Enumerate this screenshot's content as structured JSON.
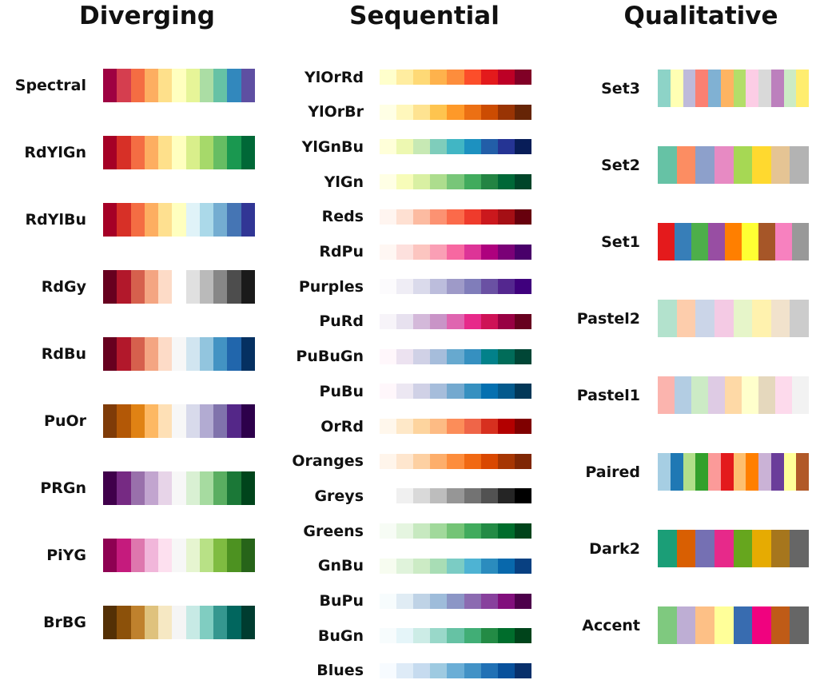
{
  "groups": [
    {
      "title": "Diverging",
      "palettes": [
        {
          "name": "Spectral",
          "colors": [
            "#9e0142",
            "#d53e4f",
            "#f46d43",
            "#fdae61",
            "#fee08b",
            "#ffffbf",
            "#e6f598",
            "#abdda4",
            "#66c2a5",
            "#3288bd",
            "#5e4fa2"
          ]
        },
        {
          "name": "RdYlGn",
          "colors": [
            "#a50026",
            "#d73027",
            "#f46d43",
            "#fdae61",
            "#fee08b",
            "#ffffbf",
            "#d9ef8b",
            "#a6d96a",
            "#66bd63",
            "#1a9850",
            "#006837"
          ]
        },
        {
          "name": "RdYlBu",
          "colors": [
            "#a50026",
            "#d73027",
            "#f46d43",
            "#fdae61",
            "#fee090",
            "#ffffbf",
            "#e0f3f8",
            "#abd9e9",
            "#74add1",
            "#4575b4",
            "#313695"
          ]
        },
        {
          "name": "RdGy",
          "colors": [
            "#67001f",
            "#b2182b",
            "#d6604d",
            "#f4a582",
            "#fddbc7",
            "#ffffff",
            "#e0e0e0",
            "#bababa",
            "#878787",
            "#4d4d4d",
            "#1a1a1a"
          ]
        },
        {
          "name": "RdBu",
          "colors": [
            "#67001f",
            "#b2182b",
            "#d6604d",
            "#f4a582",
            "#fddbc7",
            "#f7f7f7",
            "#d1e5f0",
            "#92c5de",
            "#4393c3",
            "#2166ac",
            "#053061"
          ]
        },
        {
          "name": "PuOr",
          "colors": [
            "#7f3b08",
            "#b35806",
            "#e08214",
            "#fdb863",
            "#fee0b6",
            "#f7f7f7",
            "#d8daeb",
            "#b2abd2",
            "#8073ac",
            "#542788",
            "#2d004b"
          ]
        },
        {
          "name": "PRGn",
          "colors": [
            "#40004b",
            "#762a83",
            "#9970ab",
            "#c2a5cf",
            "#e7d4e8",
            "#f7f7f7",
            "#d9f0d3",
            "#a6dba0",
            "#5aae61",
            "#1b7837",
            "#00441b"
          ]
        },
        {
          "name": "PiYG",
          "colors": [
            "#8e0152",
            "#c51b7d",
            "#de77ae",
            "#f1b6da",
            "#fde0ef",
            "#f7f7f7",
            "#e6f5d0",
            "#b8e186",
            "#7fbc41",
            "#4d9221",
            "#276419"
          ]
        },
        {
          "name": "BrBG",
          "colors": [
            "#543005",
            "#8c510a",
            "#bf812d",
            "#dfc27d",
            "#f6e8c3",
            "#f5f5f5",
            "#c7eae5",
            "#80cdc1",
            "#35978f",
            "#01665e",
            "#003c30"
          ]
        }
      ]
    },
    {
      "title": "Sequential",
      "palettes": [
        {
          "name": "YlOrRd",
          "colors": [
            "#ffffcc",
            "#ffeda0",
            "#fed976",
            "#feb24c",
            "#fd8d3c",
            "#fc4e2a",
            "#e31a1c",
            "#bd0026",
            "#800026"
          ]
        },
        {
          "name": "YlOrBr",
          "colors": [
            "#ffffe5",
            "#fff7bc",
            "#fee391",
            "#fec44f",
            "#fe9929",
            "#ec7014",
            "#cc4c02",
            "#993404",
            "#662506"
          ]
        },
        {
          "name": "YlGnBu",
          "colors": [
            "#ffffd9",
            "#edf8b1",
            "#c7e9b4",
            "#7fcdbb",
            "#41b6c4",
            "#1d91c0",
            "#225ea8",
            "#253494",
            "#081d58"
          ]
        },
        {
          "name": "YlGn",
          "colors": [
            "#ffffe5",
            "#f7fcb9",
            "#d9f0a3",
            "#addd8e",
            "#78c679",
            "#41ab5d",
            "#238443",
            "#006837",
            "#004529"
          ]
        },
        {
          "name": "Reds",
          "colors": [
            "#fff5f0",
            "#fee0d2",
            "#fcbba1",
            "#fc9272",
            "#fb6a4a",
            "#ef3b2c",
            "#cb181d",
            "#a50f15",
            "#67000d"
          ]
        },
        {
          "name": "RdPu",
          "colors": [
            "#fff7f3",
            "#fde0dd",
            "#fcc5c0",
            "#fa9fb5",
            "#f768a1",
            "#dd3497",
            "#ae017e",
            "#7a0177",
            "#49006a"
          ]
        },
        {
          "name": "Purples",
          "colors": [
            "#fcfbfd",
            "#efedf5",
            "#dadaeb",
            "#bcbddc",
            "#9e9ac8",
            "#807dba",
            "#6a51a3",
            "#54278f",
            "#3f007d"
          ]
        },
        {
          "name": "PuRd",
          "colors": [
            "#f7f4f9",
            "#e7e1ef",
            "#d4b9da",
            "#c994c7",
            "#df65b0",
            "#e7298a",
            "#ce1256",
            "#980043",
            "#67001f"
          ]
        },
        {
          "name": "PuBuGn",
          "colors": [
            "#fff7fb",
            "#ece2f0",
            "#d0d1e6",
            "#a6bddb",
            "#67a9cf",
            "#3690c0",
            "#02818a",
            "#016c59",
            "#014636"
          ]
        },
        {
          "name": "PuBu",
          "colors": [
            "#fff7fb",
            "#ece7f2",
            "#d0d1e6",
            "#a6bddb",
            "#74a9cf",
            "#3690c0",
            "#0570b0",
            "#045a8d",
            "#023858"
          ]
        },
        {
          "name": "OrRd",
          "colors": [
            "#fff7ec",
            "#fee8c8",
            "#fdd49e",
            "#fdbb84",
            "#fc8d59",
            "#ef6548",
            "#d7301f",
            "#b30000",
            "#7f0000"
          ]
        },
        {
          "name": "Oranges",
          "colors": [
            "#fff5eb",
            "#fee6ce",
            "#fdd0a2",
            "#fdae6b",
            "#fd8d3c",
            "#f16913",
            "#d94801",
            "#a63603",
            "#7f2704"
          ]
        },
        {
          "name": "Greys",
          "colors": [
            "#ffffff",
            "#f0f0f0",
            "#d9d9d9",
            "#bdbdbd",
            "#969696",
            "#737373",
            "#525252",
            "#252525",
            "#000000"
          ]
        },
        {
          "name": "Greens",
          "colors": [
            "#f7fcf5",
            "#e5f5e0",
            "#c7e9c0",
            "#a1d99b",
            "#74c476",
            "#41ab5d",
            "#238b45",
            "#006d2c",
            "#00441b"
          ]
        },
        {
          "name": "GnBu",
          "colors": [
            "#f7fcf0",
            "#e0f3db",
            "#ccebc5",
            "#a8ddb5",
            "#7bccc4",
            "#4eb3d3",
            "#2b8cbe",
            "#0868ac",
            "#084081"
          ]
        },
        {
          "name": "BuPu",
          "colors": [
            "#f7fcfd",
            "#e0ecf4",
            "#bfd3e6",
            "#9ebcda",
            "#8c96c6",
            "#8c6bb1",
            "#88419d",
            "#810f7c",
            "#4d004b"
          ]
        },
        {
          "name": "BuGn",
          "colors": [
            "#f7fcfd",
            "#e5f5f9",
            "#ccece6",
            "#99d8c9",
            "#66c2a4",
            "#41ae76",
            "#238b45",
            "#006d2c",
            "#00441b"
          ]
        },
        {
          "name": "Blues",
          "colors": [
            "#f7fbff",
            "#deebf7",
            "#c6dbef",
            "#9ecae1",
            "#6baed6",
            "#4292c6",
            "#2171b5",
            "#08519c",
            "#08306b"
          ]
        }
      ]
    },
    {
      "title": "Qualitative",
      "palettes": [
        {
          "name": "Set3",
          "colors": [
            "#8dd3c7",
            "#ffffb3",
            "#bebada",
            "#fb8072",
            "#80b1d3",
            "#fdb462",
            "#b3de69",
            "#fccde5",
            "#d9d9d9",
            "#bc80bd",
            "#ccebc5",
            "#ffed6f"
          ]
        },
        {
          "name": "Set2",
          "colors": [
            "#66c2a5",
            "#fc8d62",
            "#8da0cb",
            "#e78ac3",
            "#a6d854",
            "#ffd92f",
            "#e5c494",
            "#b3b3b3"
          ]
        },
        {
          "name": "Set1",
          "colors": [
            "#e41a1c",
            "#377eb8",
            "#4daf4a",
            "#984ea3",
            "#ff7f00",
            "#ffff33",
            "#a65628",
            "#f781bf",
            "#999999"
          ]
        },
        {
          "name": "Pastel2",
          "colors": [
            "#b3e2cd",
            "#fdcdac",
            "#cbd5e8",
            "#f4cae4",
            "#e6f5c9",
            "#fff2ae",
            "#f1e2cc",
            "#cccccc"
          ]
        },
        {
          "name": "Pastel1",
          "colors": [
            "#fbb4ae",
            "#b3cde3",
            "#ccebc5",
            "#decbe4",
            "#fed9a6",
            "#ffffcc",
            "#e5d8bd",
            "#fddaec",
            "#f2f2f2"
          ]
        },
        {
          "name": "Paired",
          "colors": [
            "#a6cee3",
            "#1f78b4",
            "#b2df8a",
            "#33a02c",
            "#fb9a99",
            "#e31a1c",
            "#fdbf6f",
            "#ff7f00",
            "#cab2d6",
            "#6a3d9a",
            "#ffff99",
            "#b15928"
          ]
        },
        {
          "name": "Dark2",
          "colors": [
            "#1b9e77",
            "#d95f02",
            "#7570b3",
            "#e7298a",
            "#66a61e",
            "#e6ab02",
            "#a6761d",
            "#666666"
          ]
        },
        {
          "name": "Accent",
          "colors": [
            "#7fc97f",
            "#beaed4",
            "#fdc086",
            "#ffff99",
            "#386cb0",
            "#f0027f",
            "#bf5b17",
            "#666666"
          ]
        }
      ]
    }
  ]
}
